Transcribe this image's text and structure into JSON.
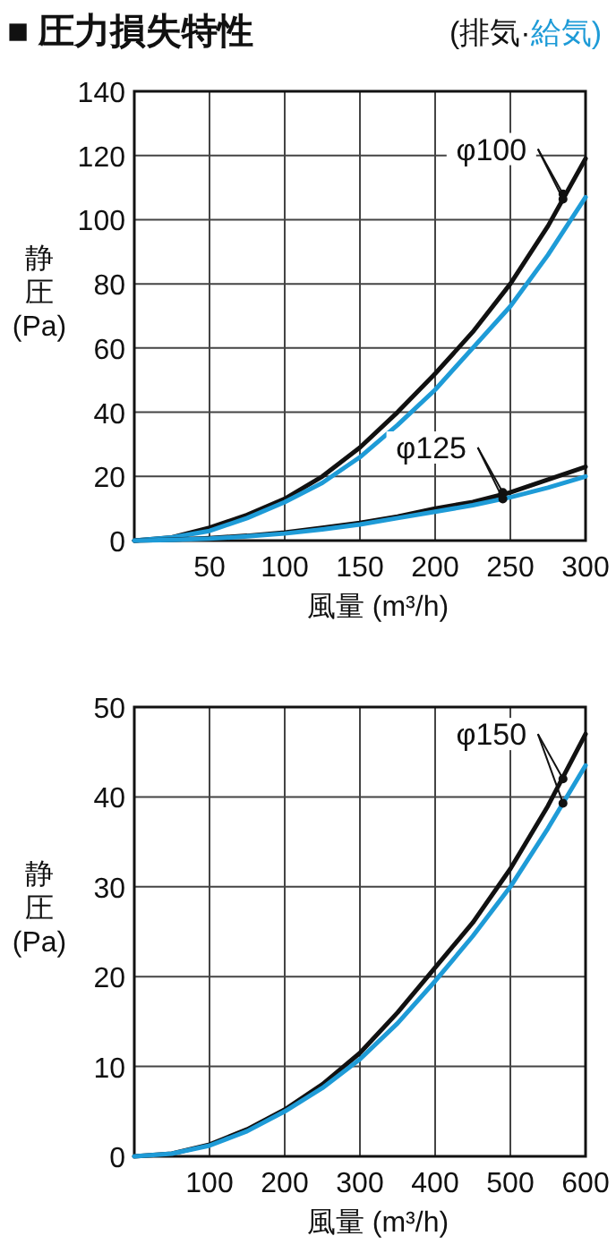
{
  "chart_data": [
    {
      "type": "line",
      "title": "■ 圧力損失特性",
      "xlabel": "風量 (m³/h)",
      "ylabel": "静圧 (Pa)",
      "legend": "top right",
      "grid": true,
      "xlim": [
        0,
        300
      ],
      "ylim": [
        0,
        140
      ],
      "xticks": [
        50,
        100,
        150,
        200,
        250,
        300
      ],
      "yticks": [
        0,
        20,
        40,
        60,
        80,
        100,
        120,
        140
      ],
      "x": [
        0,
        25,
        50,
        75,
        100,
        125,
        150,
        175,
        200,
        225,
        250,
        275,
        300
      ],
      "series": [
        {
          "name": "(排気·",
          "color": "#111111",
          "values": [
            0,
            1,
            4,
            8,
            13,
            20,
            29,
            40,
            52,
            65,
            80,
            98,
            119
          ]
        },
        {
          "name": "給気)",
          "color": "#1e9bd7",
          "values": [
            0,
            1,
            3,
            7,
            12,
            18,
            26,
            36,
            47,
            60,
            73,
            89,
            107
          ]
        },
        {
          "color": "#111111",
          "values": [
            0,
            0.3,
            0.8,
            1.5,
            2.5,
            4,
            5.5,
            7.5,
            10,
            12,
            15,
            19,
            23
          ]
        },
        {
          "color": "#1e9bd7",
          "values": [
            0,
            0.2,
            0.6,
            1.3,
            2.2,
            3.5,
            5,
            7,
            9,
            11,
            13.5,
            16.5,
            20
          ]
        }
      ],
      "annotations": [
        {
          "text": "φ100",
          "x": 285,
          "y": 108
        },
        {
          "text": "φ125",
          "x": 245,
          "y": 15
        }
      ]
    },
    {
      "type": "line",
      "xlabel": "風量 (m³/h)",
      "ylabel": "静圧 (Pa)",
      "grid": true,
      "xlim": [
        0,
        600
      ],
      "ylim": [
        0,
        50
      ],
      "xticks": [
        100,
        200,
        300,
        400,
        500,
        600
      ],
      "yticks": [
        0,
        10,
        20,
        30,
        40,
        50
      ],
      "x": [
        0,
        50,
        100,
        150,
        200,
        250,
        300,
        350,
        400,
        450,
        500,
        550,
        600
      ],
      "series": [
        {
          "color": "#111111",
          "values": [
            0,
            0.3,
            1.3,
            3,
            5.2,
            8,
            11.5,
            16,
            21,
            26,
            32,
            39,
            47
          ]
        },
        {
          "color": "#1e9bd7",
          "values": [
            0,
            0.3,
            1.2,
            2.8,
            5,
            7.6,
            10.8,
            14.8,
            19.5,
            24.5,
            30,
            36.5,
            43.5
          ]
        }
      ],
      "annotations": [
        {
          "text": "φ150",
          "x": 570,
          "y": 42
        }
      ]
    }
  ]
}
